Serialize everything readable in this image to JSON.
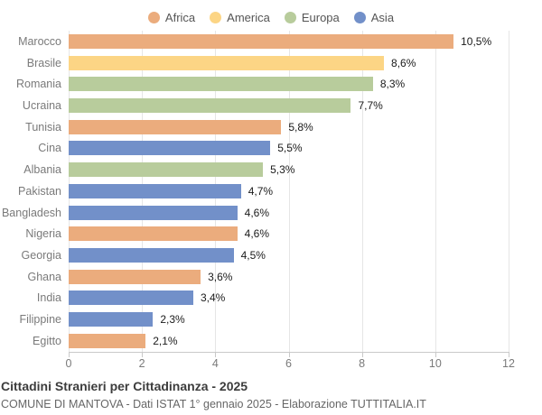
{
  "chart_data": {
    "type": "bar",
    "orientation": "horizontal",
    "title": "Cittadini Stranieri per Cittadinanza - 2025",
    "subtitle": "COMUNE DI MANTOVA - Dati ISTAT 1° gennaio 2025 - Elaborazione TUTTITALIA.IT",
    "xlim": [
      0,
      12
    ],
    "x_ticks": [
      0,
      2,
      4,
      6,
      8,
      10,
      12
    ],
    "grid": true,
    "legend_position": "top",
    "groups": [
      {
        "name": "Africa",
        "color": "#ebac7d"
      },
      {
        "name": "America",
        "color": "#fcd585"
      },
      {
        "name": "Europa",
        "color": "#b8cc9c"
      },
      {
        "name": "Asia",
        "color": "#7290c9"
      }
    ],
    "bars": [
      {
        "category": "Marocco",
        "value": 10.5,
        "label": "10,5%",
        "group": "Africa"
      },
      {
        "category": "Brasile",
        "value": 8.6,
        "label": "8,6%",
        "group": "America"
      },
      {
        "category": "Romania",
        "value": 8.3,
        "label": "8,3%",
        "group": "Europa"
      },
      {
        "category": "Ucraina",
        "value": 7.7,
        "label": "7,7%",
        "group": "Europa"
      },
      {
        "category": "Tunisia",
        "value": 5.8,
        "label": "5,8%",
        "group": "Africa"
      },
      {
        "category": "Cina",
        "value": 5.5,
        "label": "5,5%",
        "group": "Asia"
      },
      {
        "category": "Albania",
        "value": 5.3,
        "label": "5,3%",
        "group": "Europa"
      },
      {
        "category": "Pakistan",
        "value": 4.7,
        "label": "4,7%",
        "group": "Asia"
      },
      {
        "category": "Bangladesh",
        "value": 4.6,
        "label": "4,6%",
        "group": "Asia"
      },
      {
        "category": "Nigeria",
        "value": 4.6,
        "label": "4,6%",
        "group": "Africa"
      },
      {
        "category": "Georgia",
        "value": 4.5,
        "label": "4,5%",
        "group": "Asia"
      },
      {
        "category": "Ghana",
        "value": 3.6,
        "label": "3,6%",
        "group": "Africa"
      },
      {
        "category": "India",
        "value": 3.4,
        "label": "3,4%",
        "group": "Asia"
      },
      {
        "category": "Filippine",
        "value": 2.3,
        "label": "2,3%",
        "group": "Asia"
      },
      {
        "category": "Egitto",
        "value": 2.1,
        "label": "2,1%",
        "group": "Africa"
      }
    ]
  }
}
